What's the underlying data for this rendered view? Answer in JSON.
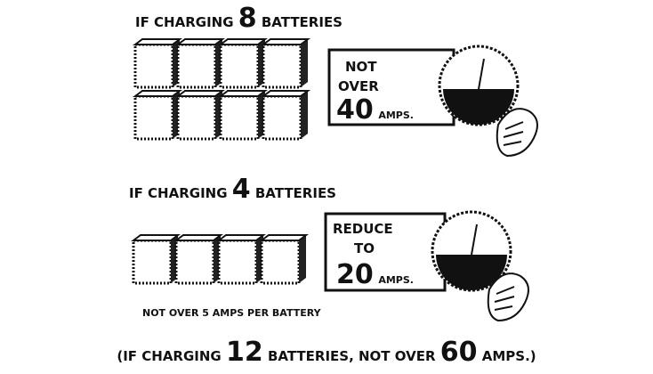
{
  "panels": [
    {
      "heading": {
        "lead": "IF CHARGING",
        "count": "8",
        "tail": "BATTERIES"
      },
      "sign": {
        "lines": [
          "NOT",
          "OVER"
        ],
        "amps": "40",
        "unit": "AMPS."
      }
    },
    {
      "heading": {
        "lead": "IF CHARGING",
        "count": "4",
        "tail": "BATTERIES"
      },
      "sign": {
        "lines": [
          "REDUCE",
          "TO"
        ],
        "amps": "20",
        "unit": "AMPS."
      },
      "note": "NOT OVER 5 AMPS PER BATTERY"
    }
  ],
  "footnote": {
    "lead": "(IF CHARGING",
    "count": "12",
    "middle": "BATTERIES, NOT OVER",
    "amps": "60",
    "tail": "AMPS.)"
  }
}
